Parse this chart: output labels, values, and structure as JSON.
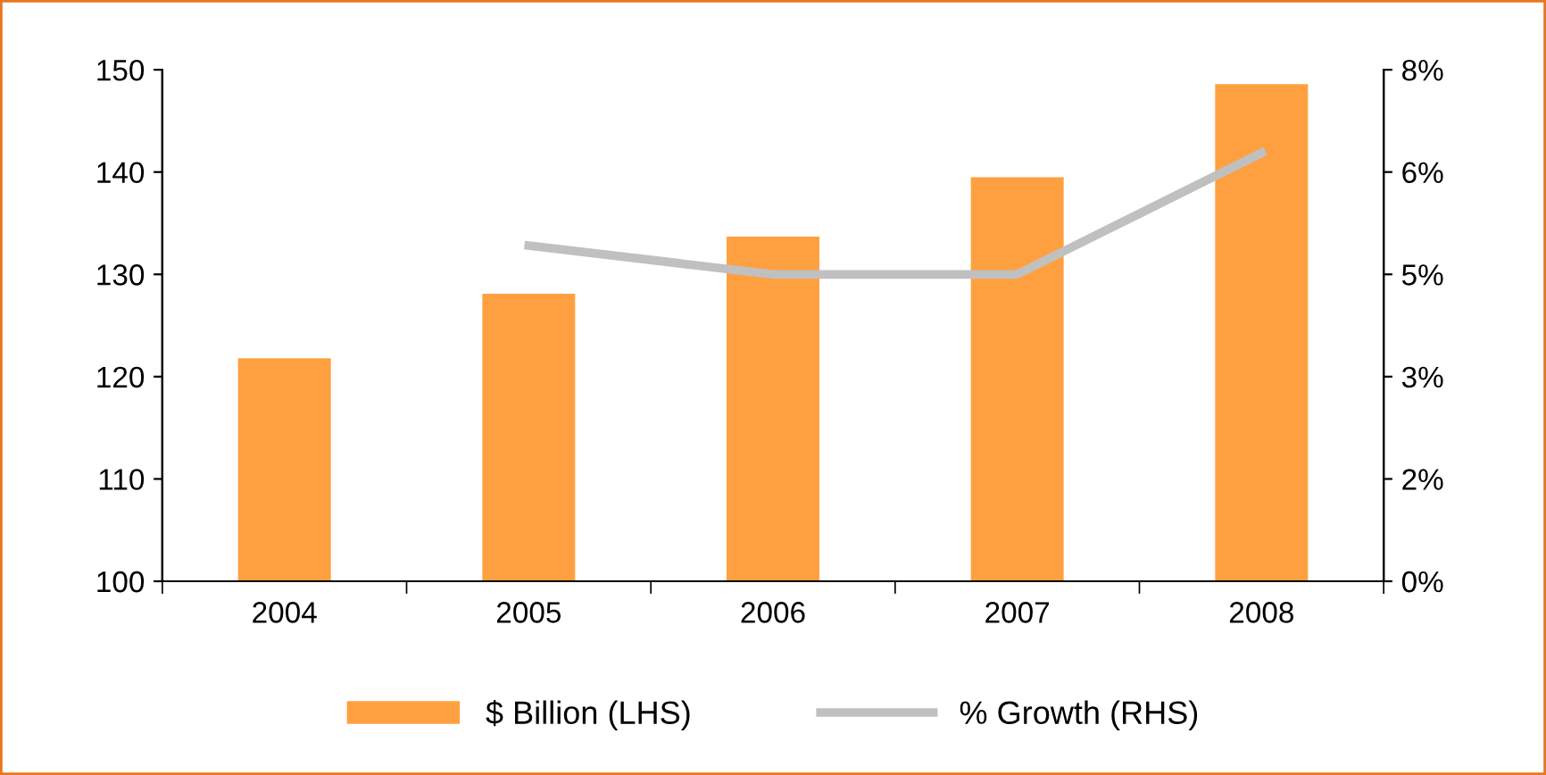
{
  "chart_data": {
    "type": "bar",
    "categories": [
      "2004",
      "2005",
      "2006",
      "2007",
      "2008"
    ],
    "series": [
      {
        "name": "$ Billion (LHS)",
        "color": "#ffa040",
        "values": [
          121.8,
          128.1,
          133.7,
          139.5,
          148.6
        ]
      },
      {
        "name": "% Growth (RHS)",
        "type": "line",
        "axis": "y2",
        "color": "#c0c0c0",
        "values": [
          null,
          5.25,
          4.8,
          4.8,
          6.7
        ]
      }
    ],
    "ylim": [
      100,
      150
    ],
    "yticks": [
      100,
      110,
      120,
      130,
      140,
      150
    ],
    "y2lim": [
      0,
      8
    ],
    "y2ticks": [
      {
        "value": 0,
        "label": "0%"
      },
      {
        "value": 1.6,
        "label": "2%"
      },
      {
        "value": 3.2,
        "label": "3%"
      },
      {
        "value": 4.8,
        "label": "5%"
      },
      {
        "value": 6.4,
        "label": "6%"
      },
      {
        "value": 8,
        "label": "8%"
      }
    ],
    "legend": "bottom",
    "grid": false
  }
}
